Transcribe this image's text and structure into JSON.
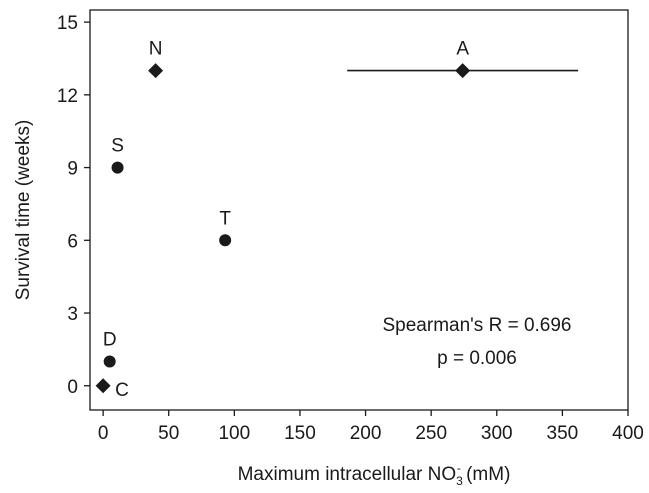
{
  "chart_data": {
    "type": "scatter",
    "title": "",
    "xlabel_main": "Maximum intracellular NO",
    "xlabel_sub": "3",
    "xlabel_sup": "-",
    "xlabel_unit": " (mM)",
    "ylabel": "Survival time (weeks)",
    "xlim": [
      -10,
      400
    ],
    "ylim": [
      -1,
      15.5
    ],
    "xticks": [
      "0",
      "50",
      "100",
      "150",
      "200",
      "250",
      "300",
      "350",
      "400"
    ],
    "yticks": [
      "0",
      "3",
      "6",
      "9",
      "12",
      "15"
    ],
    "xtick_values": [
      0,
      50,
      100,
      150,
      200,
      250,
      300,
      350,
      400
    ],
    "ytick_values": [
      0,
      3,
      6,
      9,
      12,
      15
    ],
    "points": [
      {
        "label": "C",
        "x": 0,
        "y": 0,
        "marker": "diamond",
        "label_pos": "right-below"
      },
      {
        "label": "D",
        "x": 5,
        "y": 1,
        "marker": "circle",
        "label_pos": "above"
      },
      {
        "label": "S",
        "x": 11,
        "y": 9,
        "marker": "circle",
        "label_pos": "above"
      },
      {
        "label": "N",
        "x": 40,
        "y": 13,
        "marker": "diamond",
        "label_pos": "above"
      },
      {
        "label": "T",
        "x": 93,
        "y": 6,
        "marker": "circle",
        "label_pos": "above"
      },
      {
        "label": "A",
        "x": 274,
        "y": 13,
        "marker": "diamond",
        "label_pos": "above",
        "xerr": [
          186,
          362
        ]
      }
    ],
    "annotations": [
      "Spearman's R = 0.696",
      "p = 0.006"
    ],
    "grid": false,
    "marker_color": "#1a1a1a"
  }
}
